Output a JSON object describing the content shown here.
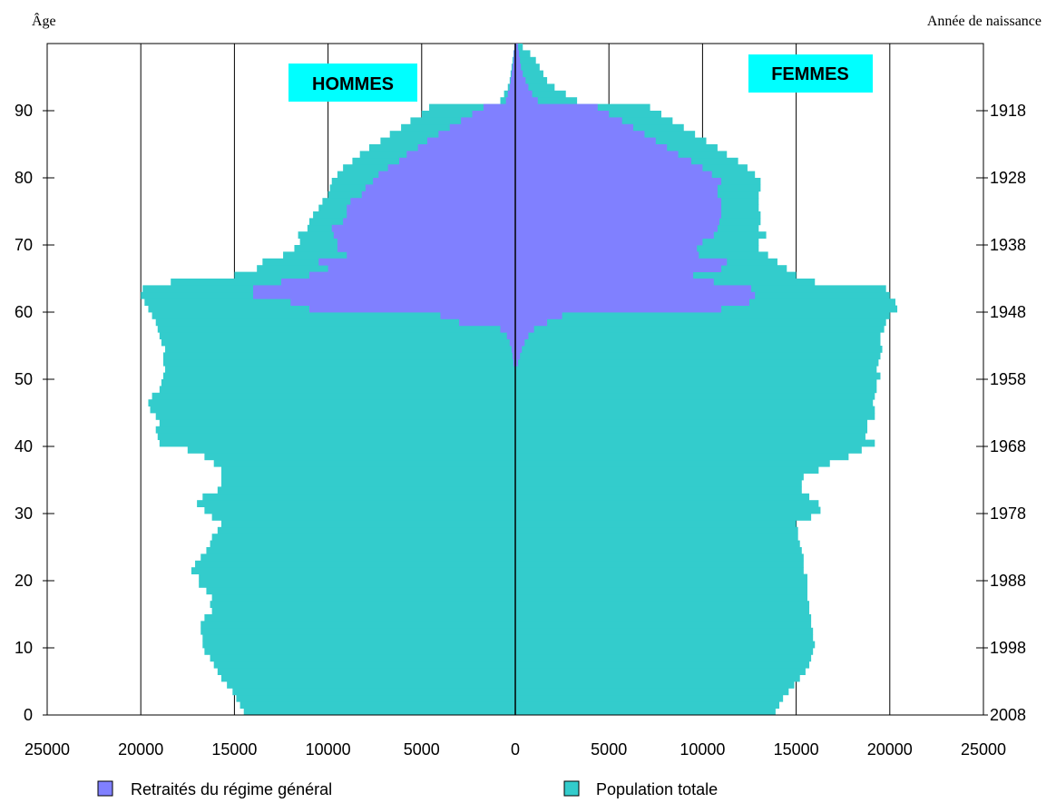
{
  "chart_data": {
    "type": "bar",
    "orientation": "horizontal-pyramid",
    "left_axis_label": "Âge",
    "right_axis_label": "Année de naissance",
    "left_group_label": "HOMMES",
    "right_group_label": "FEMMES",
    "xlim": [
      -25000,
      25000
    ],
    "ylim": [
      0,
      100
    ],
    "x_ticks": [
      -25000,
      -20000,
      -15000,
      -10000,
      -5000,
      0,
      5000,
      10000,
      15000,
      20000,
      25000
    ],
    "x_tick_labels": [
      "25000",
      "20000",
      "15000",
      "10000",
      "5000",
      "0",
      "5000",
      "10000",
      "15000",
      "20000",
      "25000"
    ],
    "age_ticks": [
      0,
      10,
      20,
      30,
      40,
      50,
      60,
      70,
      80,
      90
    ],
    "age_tick_labels": [
      "0",
      "10",
      "20",
      "30",
      "40",
      "50",
      "60",
      "70",
      "80",
      "90"
    ],
    "birth_year_tick_labels": [
      "2008",
      "1998",
      "1988",
      "1978",
      "1968",
      "1958",
      "1948",
      "1938",
      "1928",
      "1918"
    ],
    "grid": true,
    "legend_position": "bottom",
    "colors": {
      "retraites": "#8080ff",
      "population": "#33cccc",
      "group_label_bg": "#00ffff"
    },
    "series": [
      {
        "name": "Retraités du régime général",
        "color": "#8080ff",
        "hommes": [
          0,
          0,
          0,
          0,
          0,
          0,
          0,
          0,
          0,
          0,
          0,
          0,
          0,
          0,
          0,
          0,
          0,
          0,
          0,
          0,
          0,
          0,
          0,
          0,
          0,
          0,
          0,
          0,
          0,
          0,
          0,
          0,
          0,
          0,
          0,
          0,
          0,
          0,
          0,
          0,
          0,
          0,
          0,
          0,
          0,
          0,
          0,
          0,
          0,
          0,
          0,
          0,
          100,
          150,
          200,
          300,
          450,
          800,
          3000,
          4000,
          11000,
          12000,
          14000,
          14000,
          12500,
          11000,
          10000,
          10500,
          9000,
          9500,
          9500,
          9700,
          9800,
          9200,
          9000,
          9000,
          8800,
          8200,
          8000,
          7600,
          7300,
          6800,
          6200,
          5800,
          5200,
          4700,
          4100,
          3500,
          2900,
          2300,
          1700,
          500,
          400,
          300,
          250,
          200,
          150,
          100,
          80,
          50
        ],
        "femmes": [
          0,
          0,
          0,
          0,
          0,
          0,
          0,
          0,
          0,
          0,
          0,
          0,
          0,
          0,
          0,
          0,
          0,
          0,
          0,
          0,
          0,
          0,
          0,
          0,
          0,
          0,
          0,
          0,
          0,
          0,
          0,
          0,
          0,
          0,
          0,
          0,
          0,
          0,
          0,
          0,
          0,
          0,
          0,
          0,
          0,
          0,
          0,
          0,
          0,
          0,
          0,
          0,
          150,
          250,
          350,
          500,
          700,
          1000,
          1700,
          2500,
          11000,
          12500,
          12800,
          12600,
          10600,
          9500,
          11000,
          11300,
          9800,
          9700,
          10000,
          10600,
          10800,
          10900,
          11000,
          11000,
          11000,
          10800,
          10800,
          11000,
          10500,
          10000,
          9400,
          8700,
          8100,
          7500,
          6900,
          6300,
          5700,
          5000,
          4400,
          1200,
          900,
          700,
          550,
          400,
          300,
          250,
          200,
          150
        ]
      },
      {
        "name": "Population totale",
        "color": "#33cccc",
        "hommes": [
          14500,
          14700,
          14900,
          15100,
          15400,
          15700,
          15900,
          16100,
          16300,
          16600,
          16700,
          16700,
          16800,
          16800,
          16600,
          16200,
          16300,
          16200,
          16500,
          16900,
          16900,
          17300,
          17100,
          16800,
          16500,
          16300,
          16200,
          15900,
          15700,
          16200,
          16600,
          17000,
          16700,
          15900,
          15700,
          15700,
          15700,
          16100,
          16600,
          17500,
          19000,
          19100,
          19200,
          19000,
          19200,
          19500,
          19600,
          19400,
          19000,
          18900,
          18800,
          18700,
          18800,
          18800,
          18700,
          18900,
          19000,
          19100,
          19200,
          19400,
          19600,
          19800,
          20000,
          19900,
          18400,
          15000,
          13800,
          13500,
          12400,
          11800,
          11500,
          11600,
          11100,
          11000,
          10800,
          10500,
          10300,
          10000,
          9900,
          9800,
          9500,
          9200,
          8700,
          8300,
          7800,
          7200,
          6700,
          6100,
          5600,
          5000,
          4600,
          800,
          600,
          400,
          300,
          250,
          200,
          150,
          100,
          50
        ],
        "femmes": [
          13900,
          14100,
          14300,
          14600,
          14900,
          15200,
          15500,
          15700,
          15800,
          15900,
          16000,
          15900,
          15900,
          15800,
          15800,
          15700,
          15700,
          15600,
          15600,
          15600,
          15600,
          15400,
          15400,
          15400,
          15300,
          15200,
          15100,
          15100,
          15000,
          15800,
          16300,
          16200,
          15700,
          15300,
          15300,
          15400,
          16200,
          16800,
          17800,
          18500,
          19200,
          18700,
          18800,
          18800,
          19200,
          19200,
          19100,
          19200,
          19300,
          19300,
          19500,
          19300,
          19400,
          19500,
          19600,
          19500,
          19500,
          19700,
          19800,
          20000,
          20400,
          20300,
          20000,
          19800,
          16000,
          15000,
          14500,
          14000,
          13500,
          13000,
          13000,
          13400,
          13000,
          13100,
          13100,
          13000,
          13000,
          13000,
          13100,
          13100,
          12800,
          12400,
          11900,
          11300,
          10800,
          10200,
          9600,
          9000,
          8400,
          7800,
          7200,
          3300,
          2700,
          2100,
          1700,
          1500,
          1300,
          1100,
          800,
          400
        ]
      }
    ]
  }
}
